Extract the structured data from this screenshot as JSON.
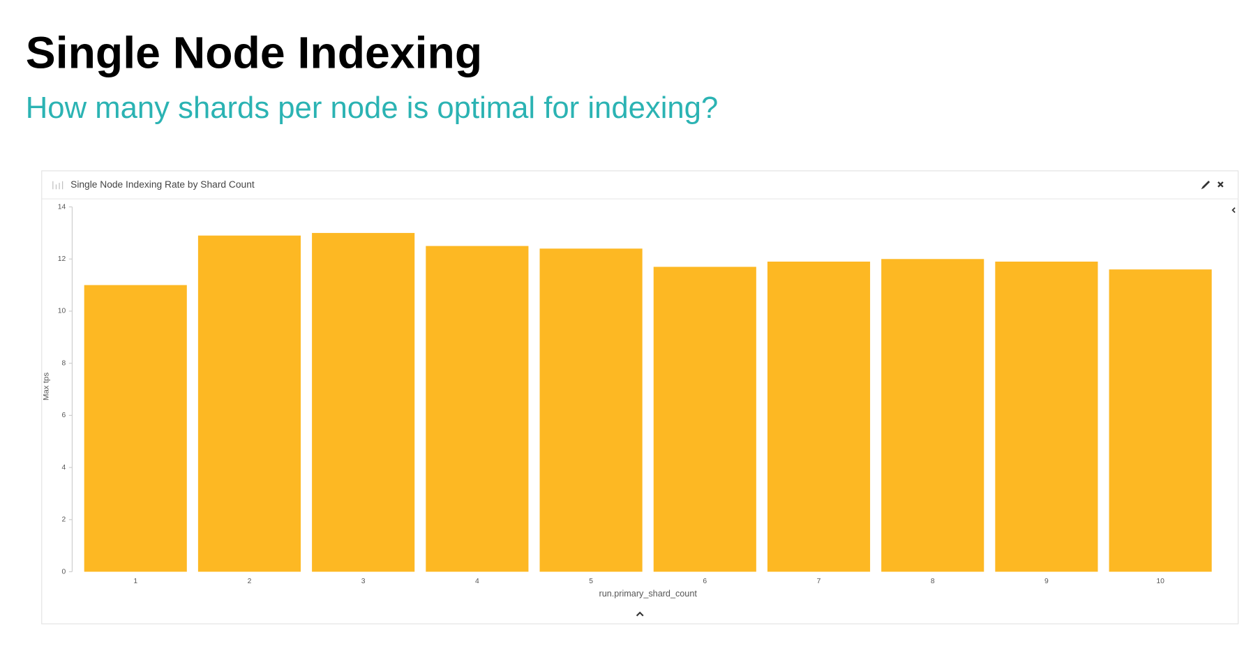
{
  "header": {
    "title": "Single Node Indexing",
    "subtitle": "How many shards per node is optimal for indexing?"
  },
  "chart_data": {
    "type": "bar",
    "title": "Single Node Indexing Rate by Shard Count",
    "x_label": "run.primary_shard_count",
    "y_label": "Max tps",
    "categories": [
      "1",
      "2",
      "3",
      "4",
      "5",
      "6",
      "7",
      "8",
      "9",
      "10"
    ],
    "values": [
      11.0,
      12.9,
      13.0,
      12.5,
      12.4,
      11.7,
      11.9,
      12.0,
      11.9,
      11.6
    ],
    "color": "#fdb823",
    "ylim": [
      0,
      14
    ],
    "yticks": [
      0,
      2,
      4,
      6,
      8,
      10,
      12,
      14
    ],
    "grid": false
  }
}
